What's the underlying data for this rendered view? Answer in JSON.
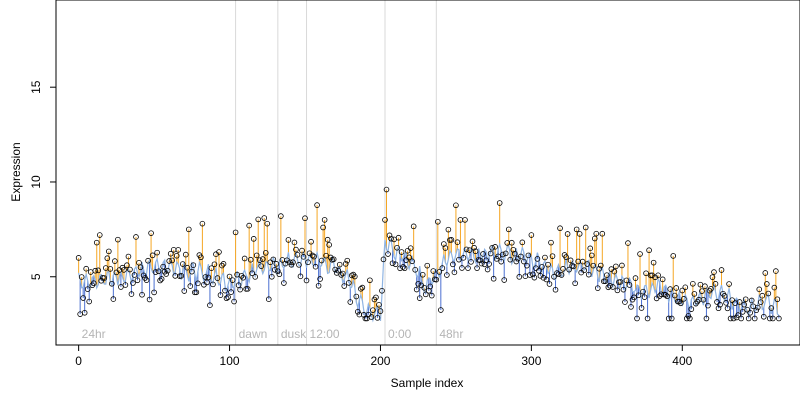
{
  "chart_data": {
    "type": "scatter",
    "title": "",
    "xlabel": "Sample index",
    "ylabel": "Expression",
    "xlim": [
      -15,
      478
    ],
    "ylim": [
      1.4,
      19.6
    ],
    "x_ticks": [
      0,
      100,
      200,
      300,
      400
    ],
    "y_ticks": [
      5,
      10,
      15
    ],
    "grid": false,
    "legend": "none",
    "colors": {
      "above_fit": "#f5a623",
      "below_fit": "#4a6fd0",
      "fit_line": "#8fb4e3",
      "point_outline": "#000000",
      "separator": "#d9d9d9",
      "region_label": "#b5b5b5"
    },
    "region_boundaries": [
      104,
      132,
      151,
      203,
      237
    ],
    "region_labels": [
      {
        "x": 2,
        "text": "24hr"
      },
      {
        "x": 106,
        "text": "dawn"
      },
      {
        "x": 134,
        "text": "dusk"
      },
      {
        "x": 153,
        "text": "12:00"
      },
      {
        "x": 205,
        "text": "0:00"
      },
      {
        "x": 239,
        "text": "48hr"
      }
    ],
    "trend_knots": [
      [
        0,
        4.7
      ],
      [
        10,
        4.8
      ],
      [
        20,
        4.9
      ],
      [
        30,
        5.0
      ],
      [
        40,
        5.3
      ],
      [
        50,
        5.5
      ],
      [
        60,
        5.6
      ],
      [
        70,
        5.3
      ],
      [
        80,
        5.3
      ],
      [
        90,
        5.0
      ],
      [
        100,
        4.6
      ],
      [
        110,
        5.0
      ],
      [
        120,
        5.5
      ],
      [
        130,
        5.6
      ],
      [
        140,
        5.8
      ],
      [
        150,
        6.0
      ],
      [
        160,
        5.8
      ],
      [
        170,
        5.5
      ],
      [
        180,
        4.8
      ],
      [
        185,
        3.8
      ],
      [
        190,
        3.3
      ],
      [
        195,
        3.1
      ],
      [
        200,
        3.0
      ],
      [
        203,
        6.8
      ],
      [
        210,
        6.3
      ],
      [
        220,
        5.8
      ],
      [
        230,
        4.5
      ],
      [
        238,
        5.2
      ],
      [
        245,
        6.0
      ],
      [
        255,
        6.2
      ],
      [
        265,
        6.1
      ],
      [
        275,
        6.3
      ],
      [
        285,
        6.2
      ],
      [
        295,
        6.1
      ],
      [
        305,
        5.8
      ],
      [
        315,
        5.2
      ],
      [
        325,
        5.5
      ],
      [
        335,
        5.6
      ],
      [
        345,
        5.2
      ],
      [
        355,
        4.8
      ],
      [
        365,
        4.6
      ],
      [
        375,
        4.2
      ],
      [
        385,
        4.5
      ],
      [
        395,
        3.9
      ],
      [
        405,
        3.6
      ],
      [
        415,
        4.0
      ],
      [
        425,
        4.3
      ],
      [
        435,
        3.6
      ],
      [
        445,
        3.3
      ],
      [
        455,
        3.8
      ],
      [
        465,
        3.2
      ]
    ],
    "wiggle_amplitude": 0.55,
    "n_points": 465,
    "point_seed": 20240611,
    "highlights": [
      {
        "x": 12,
        "y": 6.8
      },
      {
        "x": 14,
        "y": 7.2
      },
      {
        "x": 38,
        "y": 7.1
      },
      {
        "x": 48,
        "y": 7.3
      },
      {
        "x": 73,
        "y": 7.5
      },
      {
        "x": 82,
        "y": 7.8
      },
      {
        "x": 113,
        "y": 7.7
      },
      {
        "x": 116,
        "y": 7.0
      },
      {
        "x": 123,
        "y": 8.1
      },
      {
        "x": 125,
        "y": 7.8
      },
      {
        "x": 163,
        "y": 8.0
      },
      {
        "x": 162,
        "y": 7.6
      },
      {
        "x": 203,
        "y": 8.1
      },
      {
        "x": 204,
        "y": 9.6
      },
      {
        "x": 238,
        "y": 7.9
      },
      {
        "x": 253,
        "y": 8.0
      },
      {
        "x": 256,
        "y": 8.0
      },
      {
        "x": 285,
        "y": 7.5
      },
      {
        "x": 300,
        "y": 7.2
      },
      {
        "x": 313,
        "y": 6.8
      },
      {
        "x": 330,
        "y": 7.5
      },
      {
        "x": 339,
        "y": 6.5
      },
      {
        "x": 372,
        "y": 6.2
      },
      {
        "x": 378,
        "y": 6.4
      },
      {
        "x": 394,
        "y": 6.1
      },
      {
        "x": 455,
        "y": 5.2
      },
      {
        "x": 462,
        "y": 5.3
      },
      {
        "x": 203,
        "y": 8.0
      },
      {
        "x": 192,
        "y": 3.0
      },
      {
        "x": 190,
        "y": 2.8
      },
      {
        "x": 196,
        "y": 3.8
      },
      {
        "x": 370,
        "y": 2.8
      },
      {
        "x": 391,
        "y": 2.8
      },
      {
        "x": 403,
        "y": 2.8
      },
      {
        "x": 416,
        "y": 2.8
      },
      {
        "x": 444,
        "y": 2.8
      },
      {
        "x": 460,
        "y": 2.8
      },
      {
        "x": 465,
        "y": 2.8
      },
      {
        "x": 87,
        "y": 3.5
      },
      {
        "x": 47,
        "y": 3.8
      }
    ]
  }
}
